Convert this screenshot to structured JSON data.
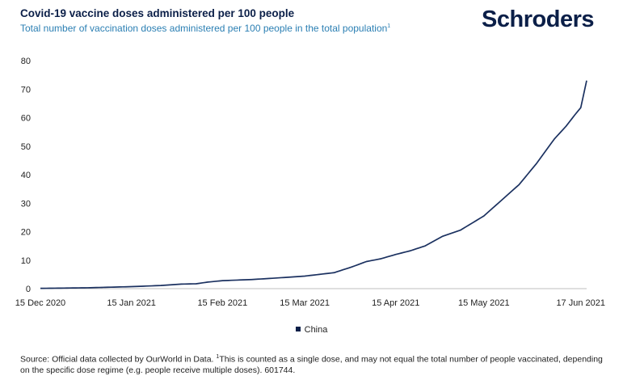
{
  "header": {
    "title": "Covid-19 vaccine doses administered per 100 people",
    "subtitle": "Total number of vaccination doses administered per 100 people in the total population",
    "subtitle_note": "1",
    "logo": "Schroders"
  },
  "source": {
    "prefix": "Source: Official data collected by OurWorld in Data. ",
    "note_mark": "1",
    "text": "This is counted as a single dose, and may not equal the total number of people vaccinated, depending on the specific dose regime (e.g. people receive multiple doses). 601744."
  },
  "colors": {
    "line": "#1b3160",
    "title": "#0b1f48",
    "subtitle": "#2b7fb3",
    "axis": "#bfbfbf"
  },
  "chart_data": {
    "type": "line",
    "title": "Covid-19 vaccine doses administered per 100 people",
    "xlabel": "",
    "ylabel": "",
    "ylim": [
      0,
      80
    ],
    "yticks": [
      0,
      10,
      20,
      30,
      40,
      50,
      60,
      70,
      80
    ],
    "xlim": [
      "2020-12-15",
      "2021-06-19"
    ],
    "xticks": [
      {
        "date": "2020-12-15",
        "label": "15 Dec 2020"
      },
      {
        "date": "2021-01-15",
        "label": "15 Jan 2021"
      },
      {
        "date": "2021-02-15",
        "label": "15 Feb 2021"
      },
      {
        "date": "2021-03-15",
        "label": "15 Mar 2021"
      },
      {
        "date": "2021-04-15",
        "label": "15 Apr 2021"
      },
      {
        "date": "2021-05-15",
        "label": "15 May 2021"
      },
      {
        "date": "2021-06-17",
        "label": "17 Jun 2021"
      }
    ],
    "grid": false,
    "legend_position": "bottom-center",
    "series": [
      {
        "name": "China",
        "points": [
          [
            "2020-12-15",
            0.1
          ],
          [
            "2020-12-31",
            0.3
          ],
          [
            "2021-01-15",
            0.7
          ],
          [
            "2021-01-25",
            1.1
          ],
          [
            "2021-02-01",
            1.6
          ],
          [
            "2021-02-06",
            1.7
          ],
          [
            "2021-02-10",
            2.3
          ],
          [
            "2021-02-15",
            2.8
          ],
          [
            "2021-02-25",
            3.2
          ],
          [
            "2021-03-05",
            3.7
          ],
          [
            "2021-03-15",
            4.4
          ],
          [
            "2021-03-25",
            5.6
          ],
          [
            "2021-03-31",
            7.6
          ],
          [
            "2021-04-05",
            9.5
          ],
          [
            "2021-04-10",
            10.5
          ],
          [
            "2021-04-15",
            12.0
          ],
          [
            "2021-04-20",
            13.3
          ],
          [
            "2021-04-25",
            15.0
          ],
          [
            "2021-05-01",
            18.4
          ],
          [
            "2021-05-07",
            20.5
          ],
          [
            "2021-05-15",
            25.5
          ],
          [
            "2021-05-21",
            31.0
          ],
          [
            "2021-05-27",
            36.5
          ],
          [
            "2021-06-02",
            44.0
          ],
          [
            "2021-06-08",
            52.5
          ],
          [
            "2021-06-12",
            57.0
          ],
          [
            "2021-06-15",
            61.0
          ],
          [
            "2021-06-17",
            63.5
          ],
          [
            "2021-06-19",
            73.0
          ]
        ]
      }
    ]
  }
}
